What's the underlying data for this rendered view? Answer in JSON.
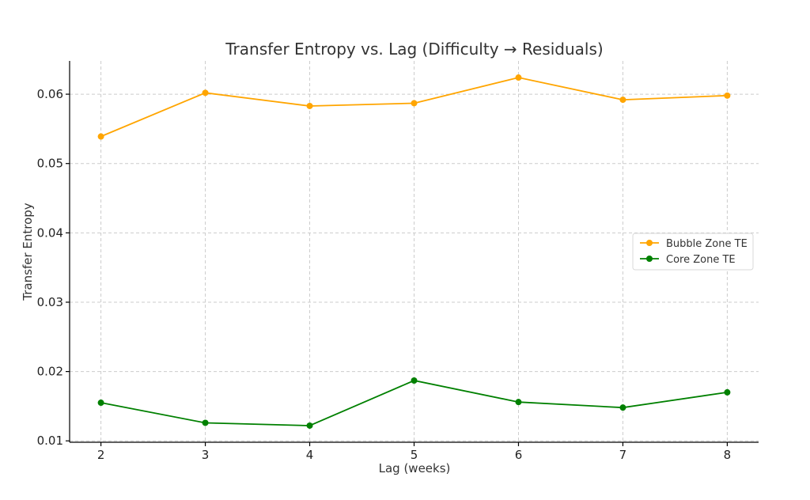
{
  "chart_data": {
    "type": "line",
    "title": "Transfer Entropy vs. Lag (Difficulty → Residuals)",
    "xlabel": "Lag (weeks)",
    "ylabel": "Transfer Entropy",
    "x": [
      2,
      3,
      4,
      5,
      6,
      7,
      8
    ],
    "xlim": [
      1.7,
      8.3
    ],
    "ylim": [
      0.0098,
      0.0648
    ],
    "xticks": [
      2,
      3,
      4,
      5,
      6,
      7,
      8
    ],
    "yticks": [
      0.01,
      0.02,
      0.03,
      0.04,
      0.05,
      0.06
    ],
    "ytick_labels": [
      "0.01",
      "0.02",
      "0.03",
      "0.04",
      "0.05",
      "0.06"
    ],
    "grid": true,
    "legend_position": "center-right",
    "series": [
      {
        "name": "Bubble Zone TE",
        "color": "#FFA500",
        "values": [
          0.0539,
          0.0602,
          0.0583,
          0.0587,
          0.0624,
          0.0592,
          0.0598
        ]
      },
      {
        "name": "Core Zone TE",
        "color": "#008000",
        "values": [
          0.0155,
          0.0126,
          0.0122,
          0.0187,
          0.0156,
          0.0148,
          0.017
        ]
      }
    ]
  }
}
